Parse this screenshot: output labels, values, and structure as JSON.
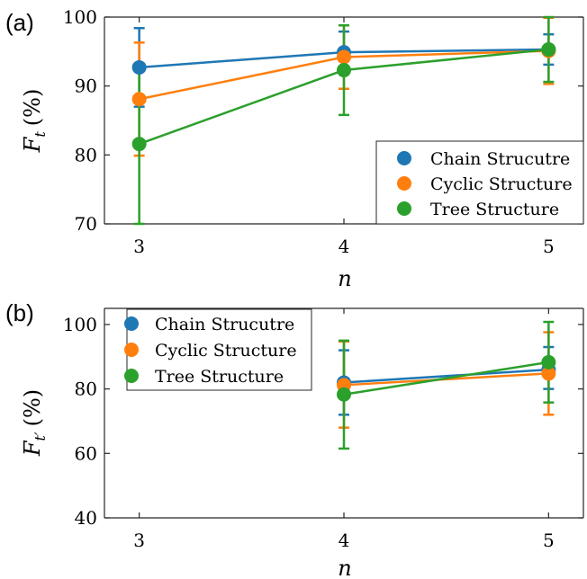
{
  "colors": {
    "chain": "#1f77b4",
    "cyclic": "#ff7f0e",
    "tree": "#2ca02c"
  },
  "chart_data": [
    {
      "panel_label": "(a)",
      "type": "line",
      "x": [
        3,
        4,
        5
      ],
      "xlabel": "n",
      "ylabel": "F",
      "ylabel_sub": "t",
      "ylabel_unit": "(%)",
      "ylim": [
        70,
        100
      ],
      "yticks": [
        70,
        80,
        90,
        100
      ],
      "xticks": [
        3,
        4,
        5
      ],
      "legend_position": "bottom-right",
      "series": [
        {
          "name": "Chain Strucutre",
          "color_key": "chain",
          "values": [
            92.7,
            94.9,
            95.3
          ],
          "err_low": [
            87.0,
            91.9,
            93.1
          ],
          "err_high": [
            98.4,
            97.9,
            97.5
          ]
        },
        {
          "name": "Cyclic Structure",
          "color_key": "cyclic",
          "values": [
            88.1,
            94.2,
            95.1
          ],
          "err_low": [
            79.9,
            89.6,
            90.3
          ],
          "err_high": [
            96.3,
            98.8,
            99.9
          ]
        },
        {
          "name": "Tree Structure",
          "color_key": "tree",
          "values": [
            81.6,
            92.3,
            95.3
          ],
          "err_low": [
            70.0,
            85.8,
            90.6
          ],
          "err_high": [
            93.2,
            98.8,
            100.0
          ]
        }
      ]
    },
    {
      "panel_label": "(b)",
      "type": "line",
      "x": [
        3,
        4,
        5
      ],
      "xlabel": "n",
      "ylabel": "F",
      "ylabel_sub": "t′",
      "ylabel_unit": "(%)",
      "ylim": [
        40,
        105
      ],
      "yticks": [
        40,
        60,
        80,
        100
      ],
      "xticks": [
        3,
        4,
        5
      ],
      "legend_position": "top-left",
      "series": [
        {
          "name": "Chain Strucutre",
          "color_key": "chain",
          "x": [
            4,
            5
          ],
          "values": [
            82.0,
            86.0
          ],
          "err_low": [
            72.0,
            80.0
          ],
          "err_high": [
            92.0,
            93.0
          ]
        },
        {
          "name": "Cyclic Structure",
          "color_key": "cyclic",
          "x": [
            4,
            5
          ],
          "values": [
            81.2,
            84.8
          ],
          "err_low": [
            68.0,
            72.0
          ],
          "err_high": [
            94.7,
            97.6
          ]
        },
        {
          "name": "Tree Structure",
          "color_key": "tree",
          "x": [
            4,
            5
          ],
          "values": [
            78.3,
            88.3
          ],
          "err_low": [
            61.5,
            75.8
          ],
          "err_high": [
            95.0,
            100.8
          ]
        }
      ]
    }
  ]
}
